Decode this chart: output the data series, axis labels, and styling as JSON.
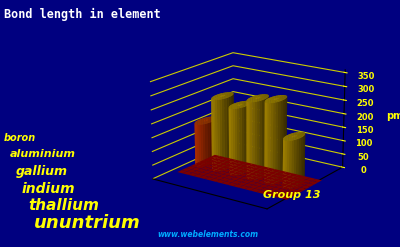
{
  "title": "Bond length in element",
  "ylabel": "pm",
  "xlabel": "Group 13",
  "elements": [
    "boron",
    "aluminium",
    "gallium",
    "indium",
    "thallium",
    "ununtrium"
  ],
  "values": [
    159,
    263,
    244,
    281,
    291,
    172
  ],
  "bar_color_yellow": "#FFD700",
  "bar_color_orange_dark": "#B83000",
  "bar_color_orange_light": "#FF6600",
  "bar_shadow": "#AA8800",
  "base_color_dark": "#7B0000",
  "base_color_mid": "#AA1100",
  "background_color": "#000080",
  "text_color": "#FFFF00",
  "grid_color": "#CCCC00",
  "title_color": "#FFFFFF",
  "yticks": [
    0,
    50,
    100,
    150,
    200,
    250,
    300,
    350
  ],
  "ylim": [
    0,
    360
  ],
  "website": "www.webelements.com",
  "website_color": "#00AAFF",
  "label_fontsizes": [
    7,
    8,
    9,
    10,
    11,
    13
  ],
  "elev": 18,
  "azim": -55
}
